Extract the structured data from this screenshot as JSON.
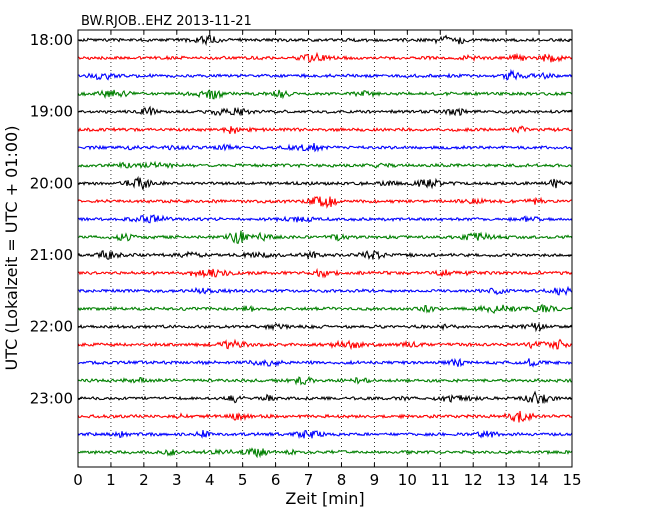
{
  "chart_data": {
    "type": "line",
    "title": "BW.RJOB..EHZ 2013-11-21",
    "xlabel": "Zeit  [min]",
    "ylabel": "UTC (Lokalzeit = UTC + 01:00)",
    "xlim": [
      0,
      15
    ],
    "x_ticks": [
      "0",
      "1",
      "2",
      "3",
      "4",
      "5",
      "6",
      "7",
      "8",
      "9",
      "10",
      "11",
      "12",
      "13",
      "14",
      "15"
    ],
    "y_tick_labels": [
      "18:00",
      "19:00",
      "20:00",
      "21:00",
      "22:00",
      "23:00"
    ],
    "y_ticks_row_index": [
      0,
      4,
      8,
      12,
      16,
      20
    ],
    "grid": true,
    "trace_colors": [
      "#000000",
      "#ff0000",
      "#0000ff",
      "#008000"
    ],
    "trace_rows": 24,
    "minutes_per_row": 15
  }
}
